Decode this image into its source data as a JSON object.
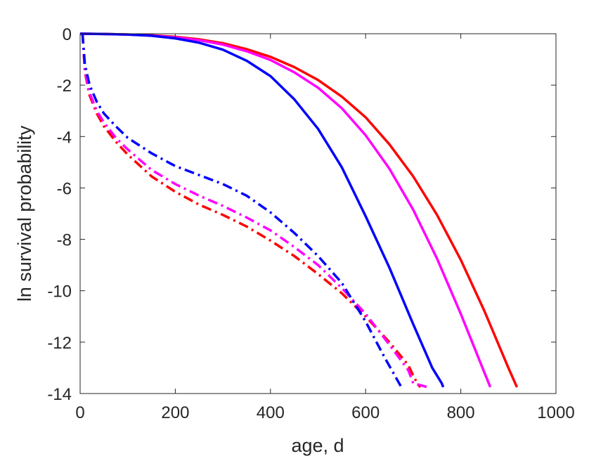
{
  "chart_data": {
    "type": "line",
    "xlabel": "age, d",
    "ylabel": "ln survival probability",
    "xlim": [
      0,
      1000
    ],
    "ylim": [
      -14,
      0
    ],
    "xticks": [
      0,
      200,
      400,
      600,
      800,
      1000
    ],
    "yticks": [
      0,
      -2,
      -4,
      -6,
      -8,
      -10,
      -12,
      -14
    ],
    "grid": false,
    "series": [
      {
        "color": "#ff0000",
        "style": "solid",
        "x": [
          0,
          50,
          100,
          150,
          200,
          250,
          300,
          350,
          400,
          450,
          500,
          550,
          600,
          650,
          700,
          750,
          800,
          850,
          900,
          918
        ],
        "y": [
          0,
          -0.01,
          -0.03,
          -0.06,
          -0.12,
          -0.22,
          -0.37,
          -0.6,
          -0.9,
          -1.3,
          -1.8,
          -2.45,
          -3.25,
          -4.3,
          -5.55,
          -7.05,
          -8.8,
          -10.8,
          -13.0,
          -13.75
        ]
      },
      {
        "color": "#ff00ff",
        "style": "solid",
        "x": [
          0,
          50,
          100,
          150,
          200,
          250,
          300,
          350,
          400,
          450,
          500,
          550,
          600,
          650,
          700,
          750,
          800,
          850,
          862
        ],
        "y": [
          0,
          -0.01,
          -0.03,
          -0.07,
          -0.14,
          -0.25,
          -0.42,
          -0.68,
          -1.02,
          -1.5,
          -2.1,
          -2.9,
          -3.95,
          -5.25,
          -6.85,
          -8.75,
          -10.9,
          -13.2,
          -13.75
        ]
      },
      {
        "color": "#0000ff",
        "style": "solid",
        "x": [
          0,
          50,
          100,
          150,
          200,
          250,
          300,
          350,
          400,
          450,
          500,
          550,
          600,
          650,
          700,
          740,
          760,
          763
        ],
        "y": [
          0,
          -0.01,
          -0.03,
          -0.08,
          -0.18,
          -0.35,
          -0.62,
          -1.05,
          -1.65,
          -2.55,
          -3.7,
          -5.2,
          -7.1,
          -9.1,
          -11.3,
          -13.0,
          -13.6,
          -13.75
        ]
      },
      {
        "color": "#ff0000",
        "style": "dashdot",
        "x": [
          5,
          10,
          20,
          35,
          50,
          75,
          100,
          150,
          200,
          250,
          300,
          350,
          400,
          450,
          500,
          550,
          600,
          650,
          690,
          700,
          710,
          715
        ],
        "y": [
          0,
          -1.5,
          -2.4,
          -3.1,
          -3.6,
          -4.2,
          -4.7,
          -5.55,
          -6.15,
          -6.65,
          -7.05,
          -7.5,
          -8.05,
          -8.65,
          -9.35,
          -10.1,
          -11.0,
          -12.0,
          -12.9,
          -13.3,
          -13.65,
          -13.75
        ]
      },
      {
        "color": "#ff00ff",
        "style": "dashdot",
        "x": [
          5,
          10,
          20,
          35,
          50,
          75,
          100,
          150,
          200,
          250,
          300,
          350,
          400,
          450,
          500,
          550,
          600,
          650,
          690,
          700,
          720,
          730
        ],
        "y": [
          0,
          -1.45,
          -2.3,
          -3.0,
          -3.45,
          -4.05,
          -4.5,
          -5.3,
          -5.85,
          -6.3,
          -6.7,
          -7.15,
          -7.65,
          -8.3,
          -9.0,
          -9.9,
          -10.9,
          -12.1,
          -13.1,
          -13.6,
          -13.7,
          -13.75
        ]
      },
      {
        "color": "#0000ff",
        "style": "dashdot",
        "x": [
          5,
          10,
          20,
          35,
          50,
          75,
          100,
          150,
          200,
          250,
          300,
          350,
          400,
          450,
          500,
          550,
          600,
          640,
          675
        ],
        "y": [
          0,
          -1.2,
          -2.0,
          -2.65,
          -3.1,
          -3.6,
          -4.05,
          -4.65,
          -5.15,
          -5.5,
          -5.85,
          -6.3,
          -6.95,
          -7.75,
          -8.65,
          -9.7,
          -11.2,
          -12.6,
          -13.75
        ]
      }
    ]
  }
}
